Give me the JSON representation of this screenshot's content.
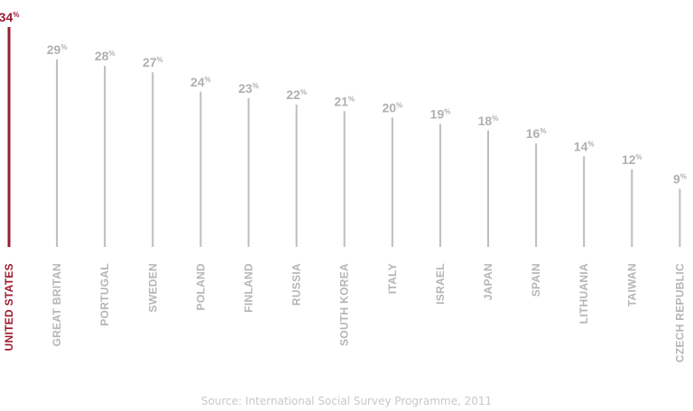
{
  "chart_data": {
    "type": "bar",
    "orientation": "vertical",
    "value_suffix": "%",
    "categories": [
      "UNITED STATES",
      "GREAT BRITAN",
      "PORTUGAL",
      "SWEDEN",
      "POLAND",
      "FINLAND",
      "RUSSIA",
      "SOUTH KOREA",
      "ITALY",
      "ISRAEL",
      "JAPAN",
      "SPAIN",
      "LITHUANIA",
      "TAIWAN",
      "CZECH REPUBLIC"
    ],
    "values": [
      34,
      29,
      28,
      27,
      24,
      23,
      22,
      21,
      20,
      19,
      18,
      16,
      14,
      12,
      9
    ],
    "highlight_category": "UNITED STATES",
    "ylim": [
      0,
      34
    ],
    "grid": false,
    "legend": "none"
  },
  "colors": {
    "highlight": "#9b1b30",
    "bar": "#bdbdbd",
    "value_text": "#b0b0b0",
    "category_text": "#b5b5b5",
    "source_text": "#c8c8c8"
  },
  "source": "Source: International Social Survey Programme, 2011"
}
